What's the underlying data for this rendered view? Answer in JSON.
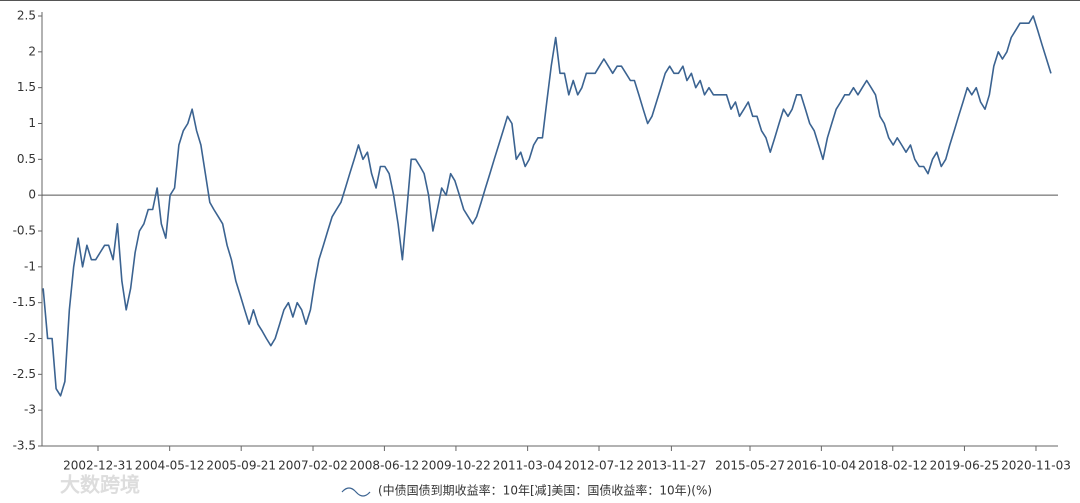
{
  "chart_data": {
    "type": "line",
    "watermark": "大数跨境",
    "xlim": [
      "2001-12-07",
      "2021-04-05"
    ],
    "xticks": [
      "2002-12-31",
      "2004-05-12",
      "2005-09-21",
      "2007-02-02",
      "2008-06-12",
      "2009-10-22",
      "2011-03-04",
      "2012-07-12",
      "2013-11-27",
      "2015-05-27",
      "2016-10-04",
      "2018-02-12",
      "2019-06-25",
      "2020-11-03"
    ],
    "ylim": [
      -3.5,
      2.5
    ],
    "yticks": [
      -3.5,
      -3,
      -2.5,
      -2,
      -1.5,
      -1,
      -0.5,
      0,
      0.5,
      1,
      1.5,
      2,
      2.5
    ],
    "x": [
      "2001-12-15",
      "2002-01-15",
      "2002-02-15",
      "2002-03-15",
      "2002-04-15",
      "2002-05-15",
      "2002-06-15",
      "2002-07-15",
      "2002-08-15",
      "2002-09-15",
      "2002-10-15",
      "2002-11-15",
      "2002-12-15",
      "2003-01-15",
      "2003-02-15",
      "2003-03-15",
      "2003-04-15",
      "2003-05-15",
      "2003-06-15",
      "2003-07-15",
      "2003-08-15",
      "2003-09-15",
      "2003-10-15",
      "2003-11-15",
      "2003-12-15",
      "2004-01-15",
      "2004-02-15",
      "2004-03-15",
      "2004-04-15",
      "2004-05-15",
      "2004-06-15",
      "2004-07-15",
      "2004-08-15",
      "2004-09-15",
      "2004-10-15",
      "2004-11-15",
      "2004-12-15",
      "2005-01-15",
      "2005-02-15",
      "2005-03-15",
      "2005-04-15",
      "2005-05-15",
      "2005-06-15",
      "2005-07-15",
      "2005-08-15",
      "2005-09-15",
      "2005-10-15",
      "2005-11-15",
      "2005-12-15",
      "2006-01-15",
      "2006-02-15",
      "2006-03-15",
      "2006-04-15",
      "2006-05-15",
      "2006-06-15",
      "2006-07-15",
      "2006-08-15",
      "2006-09-15",
      "2006-10-15",
      "2006-11-15",
      "2006-12-15",
      "2007-01-15",
      "2007-02-15",
      "2007-03-15",
      "2007-04-15",
      "2007-05-15",
      "2007-06-15",
      "2007-07-15",
      "2007-08-15",
      "2007-09-15",
      "2007-10-15",
      "2007-11-15",
      "2007-12-15",
      "2008-01-15",
      "2008-02-15",
      "2008-03-15",
      "2008-04-15",
      "2008-05-15",
      "2008-06-15",
      "2008-07-15",
      "2008-08-15",
      "2008-09-15",
      "2008-10-15",
      "2008-11-15",
      "2008-12-15",
      "2009-01-15",
      "2009-02-15",
      "2009-03-15",
      "2009-04-15",
      "2009-05-15",
      "2009-06-15",
      "2009-07-15",
      "2009-08-15",
      "2009-09-15",
      "2009-10-15",
      "2009-11-15",
      "2009-12-15",
      "2010-01-15",
      "2010-02-15",
      "2010-03-15",
      "2010-04-15",
      "2010-05-15",
      "2010-06-15",
      "2010-07-15",
      "2010-08-15",
      "2010-09-15",
      "2010-10-15",
      "2010-11-15",
      "2010-12-15",
      "2011-01-15",
      "2011-02-15",
      "2011-03-15",
      "2011-04-15",
      "2011-05-15",
      "2011-06-15",
      "2011-07-15",
      "2011-08-15",
      "2011-09-15",
      "2011-10-15",
      "2011-11-15",
      "2011-12-15",
      "2012-01-15",
      "2012-02-15",
      "2012-03-15",
      "2012-04-15",
      "2012-05-15",
      "2012-06-15",
      "2012-07-15",
      "2012-08-15",
      "2012-09-15",
      "2012-10-15",
      "2012-11-15",
      "2012-12-15",
      "2013-01-15",
      "2013-02-15",
      "2013-03-15",
      "2013-04-15",
      "2013-05-15",
      "2013-06-15",
      "2013-07-15",
      "2013-08-15",
      "2013-09-15",
      "2013-10-15",
      "2013-11-15",
      "2013-12-15",
      "2014-01-15",
      "2014-02-15",
      "2014-03-15",
      "2014-04-15",
      "2014-05-15",
      "2014-06-15",
      "2014-07-15",
      "2014-08-15",
      "2014-09-15",
      "2014-10-15",
      "2014-11-15",
      "2014-12-15",
      "2015-01-15",
      "2015-02-15",
      "2015-03-15",
      "2015-04-15",
      "2015-05-15",
      "2015-06-15",
      "2015-07-15",
      "2015-08-15",
      "2015-09-15",
      "2015-10-15",
      "2015-11-15",
      "2015-12-15",
      "2016-01-15",
      "2016-02-15",
      "2016-03-15",
      "2016-04-15",
      "2016-05-15",
      "2016-06-15",
      "2016-07-15",
      "2016-08-15",
      "2016-09-15",
      "2016-10-15",
      "2016-11-15",
      "2016-12-15",
      "2017-01-15",
      "2017-02-15",
      "2017-03-15",
      "2017-04-15",
      "2017-05-15",
      "2017-06-15",
      "2017-07-15",
      "2017-08-15",
      "2017-09-15",
      "2017-10-15",
      "2017-11-15",
      "2017-12-15",
      "2018-01-15",
      "2018-02-15",
      "2018-03-15",
      "2018-04-15",
      "2018-05-15",
      "2018-06-15",
      "2018-07-15",
      "2018-08-15",
      "2018-09-15",
      "2018-10-15",
      "2018-11-15",
      "2018-12-15",
      "2019-01-15",
      "2019-02-15",
      "2019-03-15",
      "2019-04-15",
      "2019-05-15",
      "2019-06-15",
      "2019-07-15",
      "2019-08-15",
      "2019-09-15",
      "2019-10-15",
      "2019-11-15",
      "2019-12-15",
      "2020-01-15",
      "2020-02-15",
      "2020-03-15",
      "2020-04-15",
      "2020-05-15",
      "2020-06-15",
      "2020-07-15",
      "2020-08-15",
      "2020-09-15",
      "2020-10-15",
      "2020-11-15",
      "2020-12-15",
      "2021-01-15",
      "2021-02-15"
    ],
    "series": [
      {
        "name": "(中债国债到期收益率：10年[减]美国：国债收益率：10年)(%)",
        "color": "#3b6391",
        "values": [
          -1.3,
          -2.0,
          -2.0,
          -2.7,
          -2.8,
          -2.6,
          -1.6,
          -1.0,
          -0.6,
          -1.0,
          -0.7,
          -0.9,
          -0.9,
          -0.8,
          -0.7,
          -0.7,
          -0.9,
          -0.4,
          -1.2,
          -1.6,
          -1.3,
          -0.8,
          -0.5,
          -0.4,
          -0.2,
          -0.2,
          0.1,
          -0.4,
          -0.6,
          0.0,
          0.1,
          0.7,
          0.9,
          1.0,
          1.2,
          0.9,
          0.7,
          0.3,
          -0.1,
          -0.2,
          -0.3,
          -0.4,
          -0.7,
          -0.9,
          -1.2,
          -1.4,
          -1.6,
          -1.8,
          -1.6,
          -1.8,
          -1.9,
          -2.0,
          -2.1,
          -2.0,
          -1.8,
          -1.6,
          -1.5,
          -1.7,
          -1.5,
          -1.6,
          -1.8,
          -1.6,
          -1.2,
          -0.9,
          -0.7,
          -0.5,
          -0.3,
          -0.2,
          -0.1,
          0.1,
          0.3,
          0.5,
          0.7,
          0.5,
          0.6,
          0.3,
          0.1,
          0.4,
          0.4,
          0.3,
          0.0,
          -0.4,
          -0.9,
          -0.2,
          0.5,
          0.5,
          0.4,
          0.3,
          0.0,
          -0.5,
          -0.2,
          0.1,
          0.0,
          0.3,
          0.2,
          0.0,
          -0.2,
          -0.3,
          -0.4,
          -0.3,
          -0.1,
          0.1,
          0.3,
          0.5,
          0.7,
          0.9,
          1.1,
          1.0,
          0.5,
          0.6,
          0.4,
          0.5,
          0.7,
          0.8,
          0.8,
          1.3,
          1.8,
          2.2,
          1.7,
          1.7,
          1.4,
          1.6,
          1.4,
          1.5,
          1.7,
          1.7,
          1.7,
          1.8,
          1.9,
          1.8,
          1.7,
          1.8,
          1.8,
          1.7,
          1.6,
          1.6,
          1.4,
          1.2,
          1.0,
          1.1,
          1.3,
          1.5,
          1.7,
          1.8,
          1.7,
          1.7,
          1.8,
          1.6,
          1.7,
          1.5,
          1.6,
          1.4,
          1.5,
          1.4,
          1.4,
          1.4,
          1.4,
          1.2,
          1.3,
          1.1,
          1.2,
          1.3,
          1.1,
          1.1,
          0.9,
          0.8,
          0.6,
          0.8,
          1.0,
          1.2,
          1.1,
          1.2,
          1.4,
          1.4,
          1.2,
          1.0,
          0.9,
          0.7,
          0.5,
          0.8,
          1.0,
          1.2,
          1.3,
          1.4,
          1.4,
          1.5,
          1.4,
          1.5,
          1.6,
          1.5,
          1.4,
          1.1,
          1.0,
          0.8,
          0.7,
          0.8,
          0.7,
          0.6,
          0.7,
          0.5,
          0.4,
          0.4,
          0.3,
          0.5,
          0.6,
          0.4,
          0.5,
          0.7,
          0.9,
          1.1,
          1.3,
          1.5,
          1.4,
          1.5,
          1.3,
          1.2,
          1.4,
          1.8,
          2.0,
          1.9,
          2.0,
          2.2,
          2.3,
          2.4,
          2.4,
          2.4,
          2.5,
          2.3,
          2.1,
          1.9,
          1.7
        ]
      }
    ]
  }
}
